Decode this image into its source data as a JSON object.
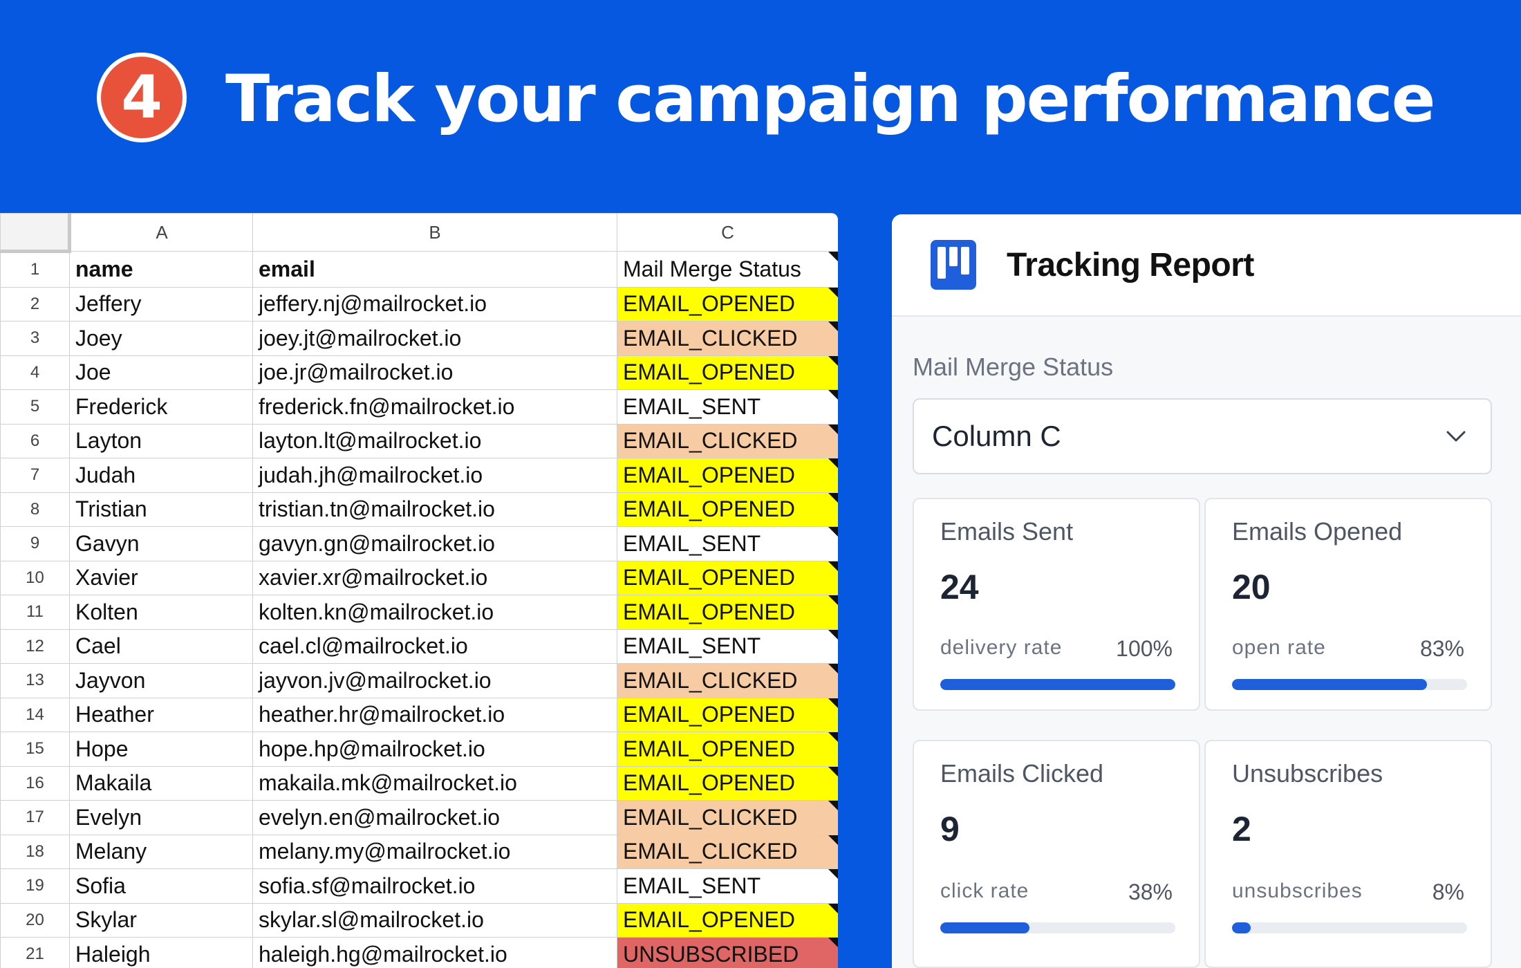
{
  "header": {
    "step_number": "4",
    "title": "Track your campaign performance"
  },
  "sheet": {
    "columns": [
      "A",
      "B",
      "C"
    ],
    "header_row": {
      "num": "1",
      "name": "name",
      "email": "email",
      "status": "Mail Merge Status"
    },
    "rows": [
      {
        "num": "2",
        "name": "Jeffery",
        "email": "jeffery.nj@mailrocket.io",
        "status": "EMAIL_OPENED"
      },
      {
        "num": "3",
        "name": "Joey",
        "email": "joey.jt@mailrocket.io",
        "status": "EMAIL_CLICKED"
      },
      {
        "num": "4",
        "name": "Joe",
        "email": "joe.jr@mailrocket.io",
        "status": "EMAIL_OPENED"
      },
      {
        "num": "5",
        "name": "Frederick",
        "email": "frederick.fn@mailrocket.io",
        "status": "EMAIL_SENT"
      },
      {
        "num": "6",
        "name": "Layton",
        "email": "layton.lt@mailrocket.io",
        "status": "EMAIL_CLICKED"
      },
      {
        "num": "7",
        "name": "Judah",
        "email": "judah.jh@mailrocket.io",
        "status": "EMAIL_OPENED"
      },
      {
        "num": "8",
        "name": "Tristian",
        "email": "tristian.tn@mailrocket.io",
        "status": "EMAIL_OPENED"
      },
      {
        "num": "9",
        "name": "Gavyn",
        "email": "gavyn.gn@mailrocket.io",
        "status": "EMAIL_SENT"
      },
      {
        "num": "10",
        "name": "Xavier",
        "email": "xavier.xr@mailrocket.io",
        "status": "EMAIL_OPENED"
      },
      {
        "num": "11",
        "name": "Kolten",
        "email": "kolten.kn@mailrocket.io",
        "status": "EMAIL_OPENED"
      },
      {
        "num": "12",
        "name": "Cael",
        "email": "cael.cl@mailrocket.io",
        "status": "EMAIL_SENT"
      },
      {
        "num": "13",
        "name": "Jayvon",
        "email": "jayvon.jv@mailrocket.io",
        "status": "EMAIL_CLICKED"
      },
      {
        "num": "14",
        "name": "Heather",
        "email": "heather.hr@mailrocket.io",
        "status": "EMAIL_OPENED"
      },
      {
        "num": "15",
        "name": "Hope",
        "email": "hope.hp@mailrocket.io",
        "status": "EMAIL_OPENED"
      },
      {
        "num": "16",
        "name": "Makaila",
        "email": "makaila.mk@mailrocket.io",
        "status": "EMAIL_OPENED"
      },
      {
        "num": "17",
        "name": "Evelyn",
        "email": "evelyn.en@mailrocket.io",
        "status": "EMAIL_CLICKED"
      },
      {
        "num": "18",
        "name": "Melany",
        "email": "melany.my@mailrocket.io",
        "status": "EMAIL_CLICKED"
      },
      {
        "num": "19",
        "name": "Sofia",
        "email": "sofia.sf@mailrocket.io",
        "status": "EMAIL_SENT"
      },
      {
        "num": "20",
        "name": "Skylar",
        "email": "skylar.sl@mailrocket.io",
        "status": "EMAIL_OPENED"
      },
      {
        "num": "21",
        "name": "Haleigh",
        "email": "haleigh.hg@mailrocket.io",
        "status": "UNSUBSCRIBED"
      }
    ],
    "status_colors": {
      "EMAIL_OPENED": "#FFFF00",
      "EMAIL_CLICKED": "#F7CBA3",
      "EMAIL_SENT": "#FFFFFF",
      "UNSUBSCRIBED": "#E06666"
    }
  },
  "report": {
    "title": "Tracking Report",
    "field_label": "Mail Merge Status",
    "select_value": "Column C",
    "cards": [
      {
        "title": "Emails Sent",
        "value": "24",
        "metric_label": "delivery rate",
        "metric_value": "100%",
        "fill": 1.0
      },
      {
        "title": "Emails Opened",
        "value": "20",
        "metric_label": "open rate",
        "metric_value": "83%",
        "fill": 0.83
      },
      {
        "title": "Emails Clicked",
        "value": "9",
        "metric_label": "click rate",
        "metric_value": "38%",
        "fill": 0.38
      },
      {
        "title": "Unsubscribes",
        "value": "2",
        "metric_label": "unsubscribes",
        "metric_value": "8%",
        "fill": 0.08
      }
    ]
  },
  "colors": {
    "background": "#0758E0",
    "badge": "#E8523A",
    "accent": "#1F5FDC"
  }
}
